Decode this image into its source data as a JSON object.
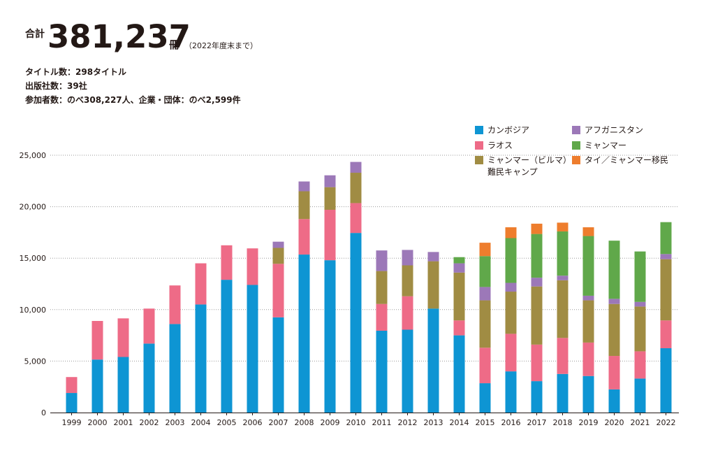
{
  "header": {
    "total_label": "合計",
    "total_value": "381,237",
    "total_unit": "冊",
    "total_note": "（2022年度末まで）",
    "stats": [
      "タイトル数：298タイトル",
      "出版社数：39社",
      "参加者数：のべ308,227人、企業・団体：のべ2,599件"
    ]
  },
  "chart_data": {
    "type": "bar",
    "stacked": true,
    "categories": [
      "1999",
      "2000",
      "2001",
      "2002",
      "2003",
      "2004",
      "2005",
      "2006",
      "2007",
      "2008",
      "2009",
      "2010",
      "2011",
      "2012",
      "2013",
      "2014",
      "2015",
      "2016",
      "2017",
      "2018",
      "2019",
      "2020",
      "2021",
      "2022"
    ],
    "ylim": [
      0,
      25000
    ],
    "y_ticks": [
      "0",
      "5,000",
      "10,000",
      "15,000",
      "20,000",
      "25,000"
    ],
    "y_tick_values": [
      0,
      5000,
      10000,
      15000,
      20000,
      25000
    ],
    "grid": "horizontal-dotted",
    "legend_position": "top-right",
    "series": [
      {
        "name": "カンボジア",
        "color": "#0e95d3",
        "values": [
          1900,
          5150,
          5400,
          6700,
          8600,
          10500,
          12900,
          12400,
          9250,
          15350,
          14800,
          17450,
          7950,
          8050,
          10100,
          7500,
          2850,
          4000,
          3050,
          3750,
          3550,
          2250,
          3300,
          6250
        ]
      },
      {
        "name": "ラオス",
        "color": "#ee6b87",
        "values": [
          1550,
          3750,
          3750,
          3400,
          3750,
          4000,
          3350,
          3550,
          5200,
          3450,
          4900,
          2900,
          2600,
          3250,
          0,
          1450,
          3450,
          3650,
          3550,
          3500,
          3250,
          3250,
          2650,
          2700
        ]
      },
      {
        "name": "ミャンマー（ビルマ）難民キャンプ",
        "color": "#a08c43",
        "values": [
          0,
          0,
          0,
          0,
          0,
          0,
          0,
          0,
          1550,
          2700,
          2200,
          2950,
          3200,
          3000,
          4600,
          4650,
          4600,
          4100,
          5650,
          5600,
          4100,
          5050,
          4350,
          5950
        ]
      },
      {
        "name": "アフガニスタン",
        "color": "#9c78b8",
        "values": [
          0,
          0,
          0,
          0,
          0,
          0,
          0,
          0,
          600,
          950,
          1150,
          1050,
          2000,
          1500,
          900,
          900,
          1300,
          850,
          850,
          450,
          450,
          500,
          450,
          500
        ]
      },
      {
        "name": "ミャンマー",
        "color": "#60a84a",
        "values": [
          0,
          0,
          0,
          0,
          0,
          0,
          0,
          0,
          0,
          0,
          0,
          0,
          0,
          0,
          0,
          600,
          3000,
          4350,
          4250,
          4300,
          5800,
          5650,
          4900,
          3100
        ]
      },
      {
        "name": "タイ／ミャンマー移民",
        "color": "#ee7d2d",
        "values": [
          0,
          0,
          0,
          0,
          0,
          0,
          0,
          0,
          0,
          0,
          0,
          0,
          0,
          0,
          0,
          0,
          1300,
          1050,
          1000,
          850,
          850,
          0,
          0,
          0
        ]
      }
    ]
  },
  "legend": {
    "items": [
      {
        "label": "カンボジア",
        "color": "#0e95d3"
      },
      {
        "label": "ラオス",
        "color": "#ee6b87"
      },
      {
        "label": "ミャンマー（ビルマ）",
        "label2": "難民キャンプ",
        "color": "#a08c43"
      },
      {
        "label": "アフガニスタン",
        "color": "#9c78b8"
      },
      {
        "label": "ミャンマー",
        "color": "#60a84a"
      },
      {
        "label": "タイ／ミャンマー移民",
        "color": "#ee7d2d"
      }
    ]
  }
}
